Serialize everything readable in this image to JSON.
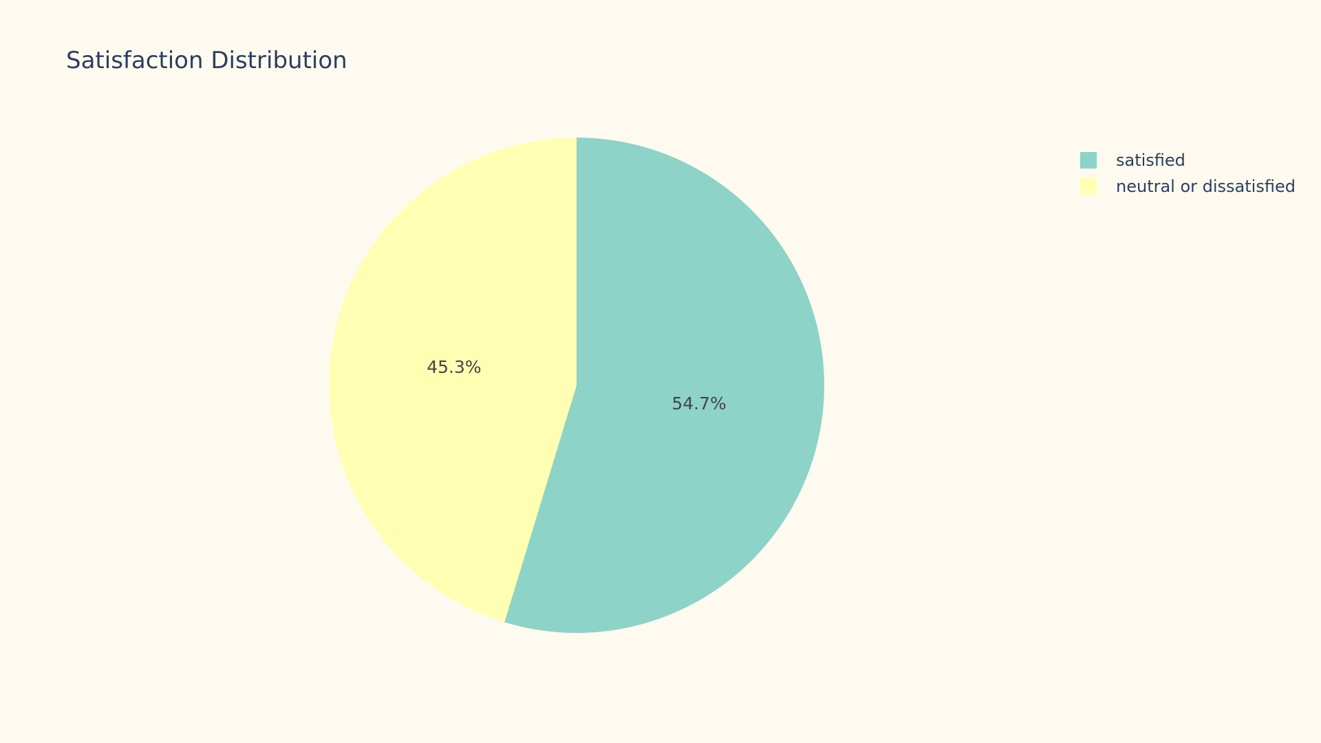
{
  "chart_data": {
    "type": "pie",
    "title": "Satisfaction Distribution",
    "slices": [
      {
        "label": "satisfied",
        "value": 54.7,
        "text": "54.7%",
        "color": "#8dd3c7"
      },
      {
        "label": "neutral or dissatisfied",
        "value": 45.3,
        "text": "45.3%",
        "color": "#ffffb3"
      }
    ],
    "start_angle_deg": 90,
    "direction": "clockwise",
    "legend_placement": "top-right",
    "label_color": "#444444",
    "background_color": "#fffaf0"
  }
}
